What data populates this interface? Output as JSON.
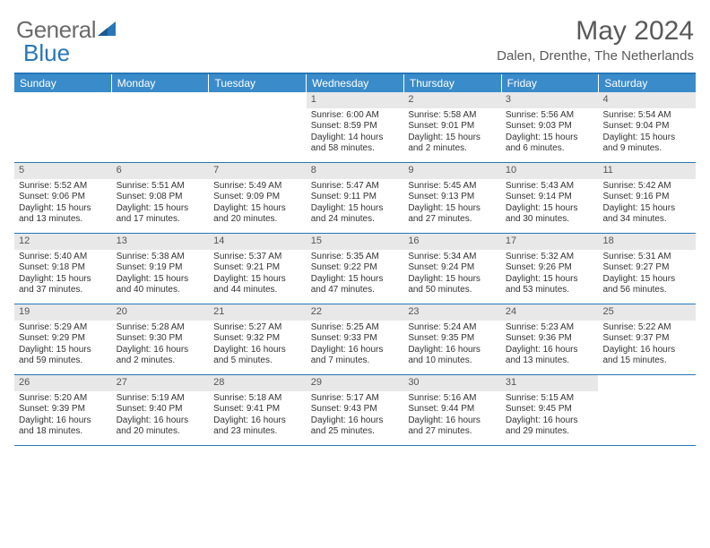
{
  "logo": {
    "text1": "General",
    "text2": "Blue"
  },
  "title": "May 2024",
  "location": "Dalen, Drenthe, The Netherlands",
  "weekdays": [
    "Sunday",
    "Monday",
    "Tuesday",
    "Wednesday",
    "Thursday",
    "Friday",
    "Saturday"
  ],
  "colors": {
    "header_bar": "#3a8bc9",
    "border": "#2776b8",
    "daynum_bg": "#e8e8e8",
    "text": "#333333",
    "title_text": "#595959"
  },
  "weeks": [
    [
      {
        "n": "",
        "sr": "",
        "ss": "",
        "dl": ""
      },
      {
        "n": "",
        "sr": "",
        "ss": "",
        "dl": ""
      },
      {
        "n": "",
        "sr": "",
        "ss": "",
        "dl": ""
      },
      {
        "n": "1",
        "sr": "Sunrise: 6:00 AM",
        "ss": "Sunset: 8:59 PM",
        "dl": "Daylight: 14 hours and 58 minutes."
      },
      {
        "n": "2",
        "sr": "Sunrise: 5:58 AM",
        "ss": "Sunset: 9:01 PM",
        "dl": "Daylight: 15 hours and 2 minutes."
      },
      {
        "n": "3",
        "sr": "Sunrise: 5:56 AM",
        "ss": "Sunset: 9:03 PM",
        "dl": "Daylight: 15 hours and 6 minutes."
      },
      {
        "n": "4",
        "sr": "Sunrise: 5:54 AM",
        "ss": "Sunset: 9:04 PM",
        "dl": "Daylight: 15 hours and 9 minutes."
      }
    ],
    [
      {
        "n": "5",
        "sr": "Sunrise: 5:52 AM",
        "ss": "Sunset: 9:06 PM",
        "dl": "Daylight: 15 hours and 13 minutes."
      },
      {
        "n": "6",
        "sr": "Sunrise: 5:51 AM",
        "ss": "Sunset: 9:08 PM",
        "dl": "Daylight: 15 hours and 17 minutes."
      },
      {
        "n": "7",
        "sr": "Sunrise: 5:49 AM",
        "ss": "Sunset: 9:09 PM",
        "dl": "Daylight: 15 hours and 20 minutes."
      },
      {
        "n": "8",
        "sr": "Sunrise: 5:47 AM",
        "ss": "Sunset: 9:11 PM",
        "dl": "Daylight: 15 hours and 24 minutes."
      },
      {
        "n": "9",
        "sr": "Sunrise: 5:45 AM",
        "ss": "Sunset: 9:13 PM",
        "dl": "Daylight: 15 hours and 27 minutes."
      },
      {
        "n": "10",
        "sr": "Sunrise: 5:43 AM",
        "ss": "Sunset: 9:14 PM",
        "dl": "Daylight: 15 hours and 30 minutes."
      },
      {
        "n": "11",
        "sr": "Sunrise: 5:42 AM",
        "ss": "Sunset: 9:16 PM",
        "dl": "Daylight: 15 hours and 34 minutes."
      }
    ],
    [
      {
        "n": "12",
        "sr": "Sunrise: 5:40 AM",
        "ss": "Sunset: 9:18 PM",
        "dl": "Daylight: 15 hours and 37 minutes."
      },
      {
        "n": "13",
        "sr": "Sunrise: 5:38 AM",
        "ss": "Sunset: 9:19 PM",
        "dl": "Daylight: 15 hours and 40 minutes."
      },
      {
        "n": "14",
        "sr": "Sunrise: 5:37 AM",
        "ss": "Sunset: 9:21 PM",
        "dl": "Daylight: 15 hours and 44 minutes."
      },
      {
        "n": "15",
        "sr": "Sunrise: 5:35 AM",
        "ss": "Sunset: 9:22 PM",
        "dl": "Daylight: 15 hours and 47 minutes."
      },
      {
        "n": "16",
        "sr": "Sunrise: 5:34 AM",
        "ss": "Sunset: 9:24 PM",
        "dl": "Daylight: 15 hours and 50 minutes."
      },
      {
        "n": "17",
        "sr": "Sunrise: 5:32 AM",
        "ss": "Sunset: 9:26 PM",
        "dl": "Daylight: 15 hours and 53 minutes."
      },
      {
        "n": "18",
        "sr": "Sunrise: 5:31 AM",
        "ss": "Sunset: 9:27 PM",
        "dl": "Daylight: 15 hours and 56 minutes."
      }
    ],
    [
      {
        "n": "19",
        "sr": "Sunrise: 5:29 AM",
        "ss": "Sunset: 9:29 PM",
        "dl": "Daylight: 15 hours and 59 minutes."
      },
      {
        "n": "20",
        "sr": "Sunrise: 5:28 AM",
        "ss": "Sunset: 9:30 PM",
        "dl": "Daylight: 16 hours and 2 minutes."
      },
      {
        "n": "21",
        "sr": "Sunrise: 5:27 AM",
        "ss": "Sunset: 9:32 PM",
        "dl": "Daylight: 16 hours and 5 minutes."
      },
      {
        "n": "22",
        "sr": "Sunrise: 5:25 AM",
        "ss": "Sunset: 9:33 PM",
        "dl": "Daylight: 16 hours and 7 minutes."
      },
      {
        "n": "23",
        "sr": "Sunrise: 5:24 AM",
        "ss": "Sunset: 9:35 PM",
        "dl": "Daylight: 16 hours and 10 minutes."
      },
      {
        "n": "24",
        "sr": "Sunrise: 5:23 AM",
        "ss": "Sunset: 9:36 PM",
        "dl": "Daylight: 16 hours and 13 minutes."
      },
      {
        "n": "25",
        "sr": "Sunrise: 5:22 AM",
        "ss": "Sunset: 9:37 PM",
        "dl": "Daylight: 16 hours and 15 minutes."
      }
    ],
    [
      {
        "n": "26",
        "sr": "Sunrise: 5:20 AM",
        "ss": "Sunset: 9:39 PM",
        "dl": "Daylight: 16 hours and 18 minutes."
      },
      {
        "n": "27",
        "sr": "Sunrise: 5:19 AM",
        "ss": "Sunset: 9:40 PM",
        "dl": "Daylight: 16 hours and 20 minutes."
      },
      {
        "n": "28",
        "sr": "Sunrise: 5:18 AM",
        "ss": "Sunset: 9:41 PM",
        "dl": "Daylight: 16 hours and 23 minutes."
      },
      {
        "n": "29",
        "sr": "Sunrise: 5:17 AM",
        "ss": "Sunset: 9:43 PM",
        "dl": "Daylight: 16 hours and 25 minutes."
      },
      {
        "n": "30",
        "sr": "Sunrise: 5:16 AM",
        "ss": "Sunset: 9:44 PM",
        "dl": "Daylight: 16 hours and 27 minutes."
      },
      {
        "n": "31",
        "sr": "Sunrise: 5:15 AM",
        "ss": "Sunset: 9:45 PM",
        "dl": "Daylight: 16 hours and 29 minutes."
      },
      {
        "n": "",
        "sr": "",
        "ss": "",
        "dl": ""
      }
    ]
  ]
}
